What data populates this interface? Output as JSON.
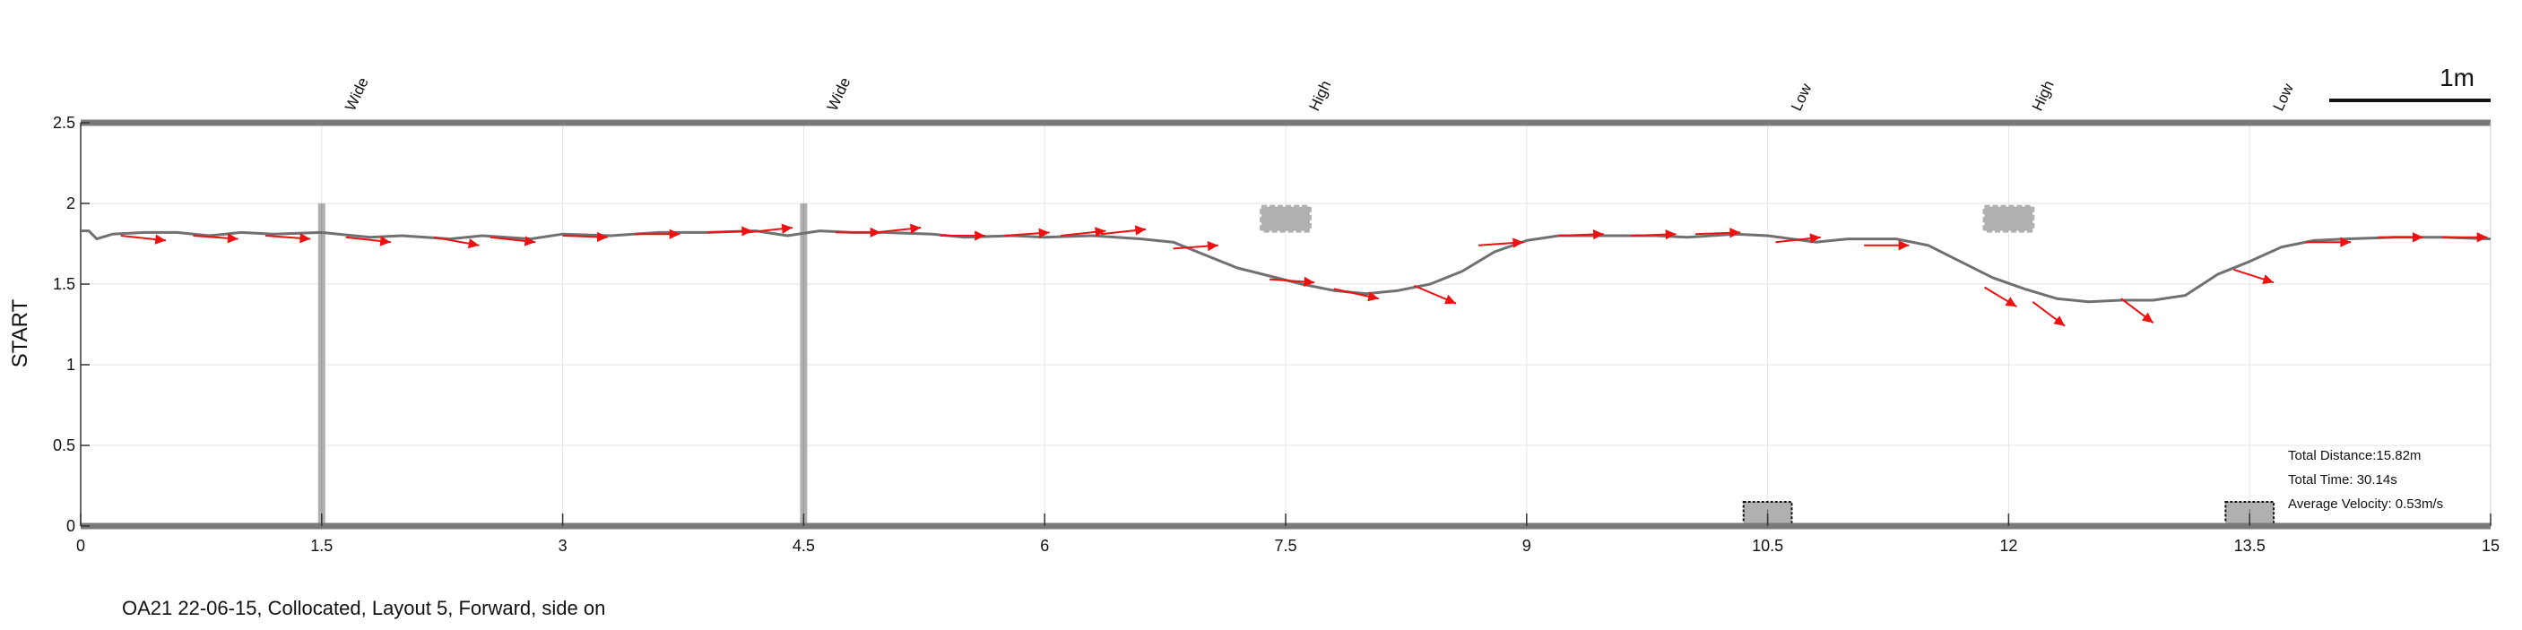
{
  "chart_data": {
    "type": "line",
    "xlim": [
      0,
      15
    ],
    "ylim": [
      0,
      2.5
    ],
    "x_ticks": [
      0,
      1.5,
      3,
      4.5,
      6,
      7.5,
      9,
      10.5,
      12,
      13.5,
      15
    ],
    "x_tick_labels": [
      "0",
      "1.5",
      "3",
      "4.5",
      "6",
      "7.5",
      "9",
      "10.5",
      "12",
      "13.5",
      "15"
    ],
    "y_ticks": [
      0,
      0.5,
      1,
      1.5,
      2,
      2.5
    ],
    "y_tick_labels": [
      "0",
      "0.5",
      "1",
      "1.5",
      "2",
      "2.5"
    ],
    "ylabel": "START",
    "grid": true,
    "caption": "OA21 22-06-15, Collocated, Layout 5, Forward, side on",
    "scale_bar_label": "1m",
    "stats": {
      "distance": "Total Distance:15.82m",
      "time": "Total Time: 30.14s",
      "velocity": "Average Velocity: 0.53m/s"
    },
    "obstacle_labels": [
      {
        "x": 1.5,
        "text": "Wide"
      },
      {
        "x": 4.5,
        "text": "Wide"
      },
      {
        "x": 7.5,
        "text": "High"
      },
      {
        "x": 10.5,
        "text": "Low"
      },
      {
        "x": 12,
        "text": "High"
      },
      {
        "x": 13.5,
        "text": "Low"
      }
    ],
    "posts": [
      {
        "x": 1.5,
        "top": 2.0
      },
      {
        "x": 4.5,
        "top": 2.0
      }
    ],
    "high_obstacles": [
      {
        "x0": 7.35,
        "x1": 7.65,
        "y0": 1.83,
        "y1": 1.98
      },
      {
        "x0": 11.85,
        "x1": 12.15,
        "y0": 1.83,
        "y1": 1.98
      }
    ],
    "low_obstacles": [
      {
        "x0": 10.35,
        "x1": 10.65,
        "y0": 0.0,
        "y1": 0.15
      },
      {
        "x0": 13.35,
        "x1": 13.65,
        "y0": 0.0,
        "y1": 0.15
      }
    ],
    "path": {
      "x": [
        0,
        0.05,
        0.1,
        0.2,
        0.4,
        0.6,
        0.8,
        1.0,
        1.2,
        1.5,
        1.8,
        2.0,
        2.3,
        2.5,
        2.8,
        3.0,
        3.3,
        3.6,
        3.9,
        4.2,
        4.4,
        4.6,
        4.8,
        5.0,
        5.3,
        5.5,
        5.8,
        6.0,
        6.3,
        6.6,
        6.8,
        7.0,
        7.2,
        7.4,
        7.6,
        7.8,
        8.0,
        8.2,
        8.4,
        8.6,
        8.8,
        9.0,
        9.2,
        9.5,
        9.8,
        10.0,
        10.3,
        10.5,
        10.8,
        11.0,
        11.3,
        11.5,
        11.7,
        11.9,
        12.1,
        12.3,
        12.5,
        12.7,
        12.9,
        13.1,
        13.3,
        13.5,
        13.7,
        13.9,
        14.1,
        14.4,
        14.7,
        15.0
      ],
      "y": [
        1.83,
        1.83,
        1.78,
        1.81,
        1.82,
        1.82,
        1.8,
        1.82,
        1.81,
        1.82,
        1.79,
        1.8,
        1.78,
        1.8,
        1.78,
        1.81,
        1.8,
        1.82,
        1.82,
        1.83,
        1.8,
        1.83,
        1.82,
        1.82,
        1.81,
        1.79,
        1.8,
        1.79,
        1.8,
        1.78,
        1.76,
        1.68,
        1.6,
        1.55,
        1.5,
        1.46,
        1.44,
        1.46,
        1.5,
        1.58,
        1.7,
        1.77,
        1.8,
        1.8,
        1.8,
        1.79,
        1.81,
        1.8,
        1.76,
        1.78,
        1.78,
        1.74,
        1.64,
        1.54,
        1.47,
        1.41,
        1.39,
        1.4,
        1.4,
        1.43,
        1.56,
        1.64,
        1.73,
        1.77,
        1.78,
        1.79,
        1.79,
        1.78
      ]
    },
    "arrows": [
      [
        0.25,
        1.8,
        0.28,
        -0.03
      ],
      [
        0.7,
        1.8,
        0.28,
        -0.02
      ],
      [
        1.15,
        1.8,
        0.28,
        -0.02
      ],
      [
        1.65,
        1.79,
        0.28,
        -0.03
      ],
      [
        2.2,
        1.79,
        0.28,
        -0.05
      ],
      [
        2.55,
        1.79,
        0.28,
        -0.03
      ],
      [
        3.0,
        1.8,
        0.28,
        -0.01
      ],
      [
        3.45,
        1.81,
        0.28,
        0.0
      ],
      [
        3.9,
        1.82,
        0.28,
        0.01
      ],
      [
        4.15,
        1.82,
        0.28,
        0.03
      ],
      [
        4.7,
        1.82,
        0.28,
        0.0
      ],
      [
        4.95,
        1.82,
        0.28,
        0.03
      ],
      [
        5.35,
        1.8,
        0.28,
        0.0
      ],
      [
        5.75,
        1.8,
        0.28,
        0.02
      ],
      [
        6.1,
        1.8,
        0.28,
        0.03
      ],
      [
        6.35,
        1.81,
        0.28,
        0.03
      ],
      [
        6.8,
        1.72,
        0.28,
        0.02
      ],
      [
        7.4,
        1.53,
        0.28,
        -0.02
      ],
      [
        7.8,
        1.47,
        0.28,
        -0.06
      ],
      [
        8.3,
        1.49,
        0.26,
        -0.11
      ],
      [
        8.7,
        1.74,
        0.28,
        0.02
      ],
      [
        9.2,
        1.8,
        0.28,
        0.01
      ],
      [
        9.65,
        1.8,
        0.28,
        0.01
      ],
      [
        10.05,
        1.81,
        0.28,
        0.01
      ],
      [
        10.55,
        1.76,
        0.28,
        0.03
      ],
      [
        11.1,
        1.74,
        0.28,
        0.0
      ],
      [
        11.85,
        1.48,
        0.2,
        -0.12
      ],
      [
        12.15,
        1.39,
        0.2,
        -0.15
      ],
      [
        12.7,
        1.41,
        0.2,
        -0.15
      ],
      [
        13.4,
        1.59,
        0.25,
        -0.08
      ],
      [
        13.85,
        1.76,
        0.28,
        0.0
      ],
      [
        14.3,
        1.79,
        0.28,
        0.0
      ],
      [
        14.7,
        1.79,
        0.28,
        0.0
      ]
    ],
    "colors": {
      "path": "#707070",
      "arrow": "#ee1111",
      "obstacle": "#b0b0b0",
      "axis": "#7a7a7a",
      "grid": "#e4e4e4"
    }
  }
}
